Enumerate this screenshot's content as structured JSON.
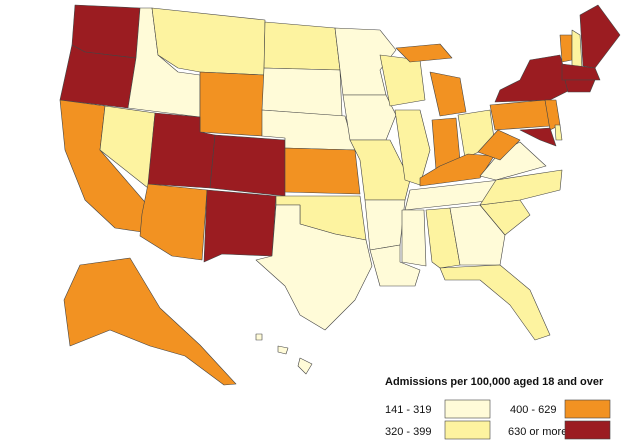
{
  "legend": {
    "title": "Admissions per 100,000 aged 18 and over",
    "items": [
      {
        "label": "141 - 319",
        "color": "#fffbd8"
      },
      {
        "label": "320 - 399",
        "color": "#fdf3a0"
      },
      {
        "label": "400 - 629",
        "color": "#f29222"
      },
      {
        "label": "630 or more",
        "color": "#9b1c21"
      }
    ]
  }
}
